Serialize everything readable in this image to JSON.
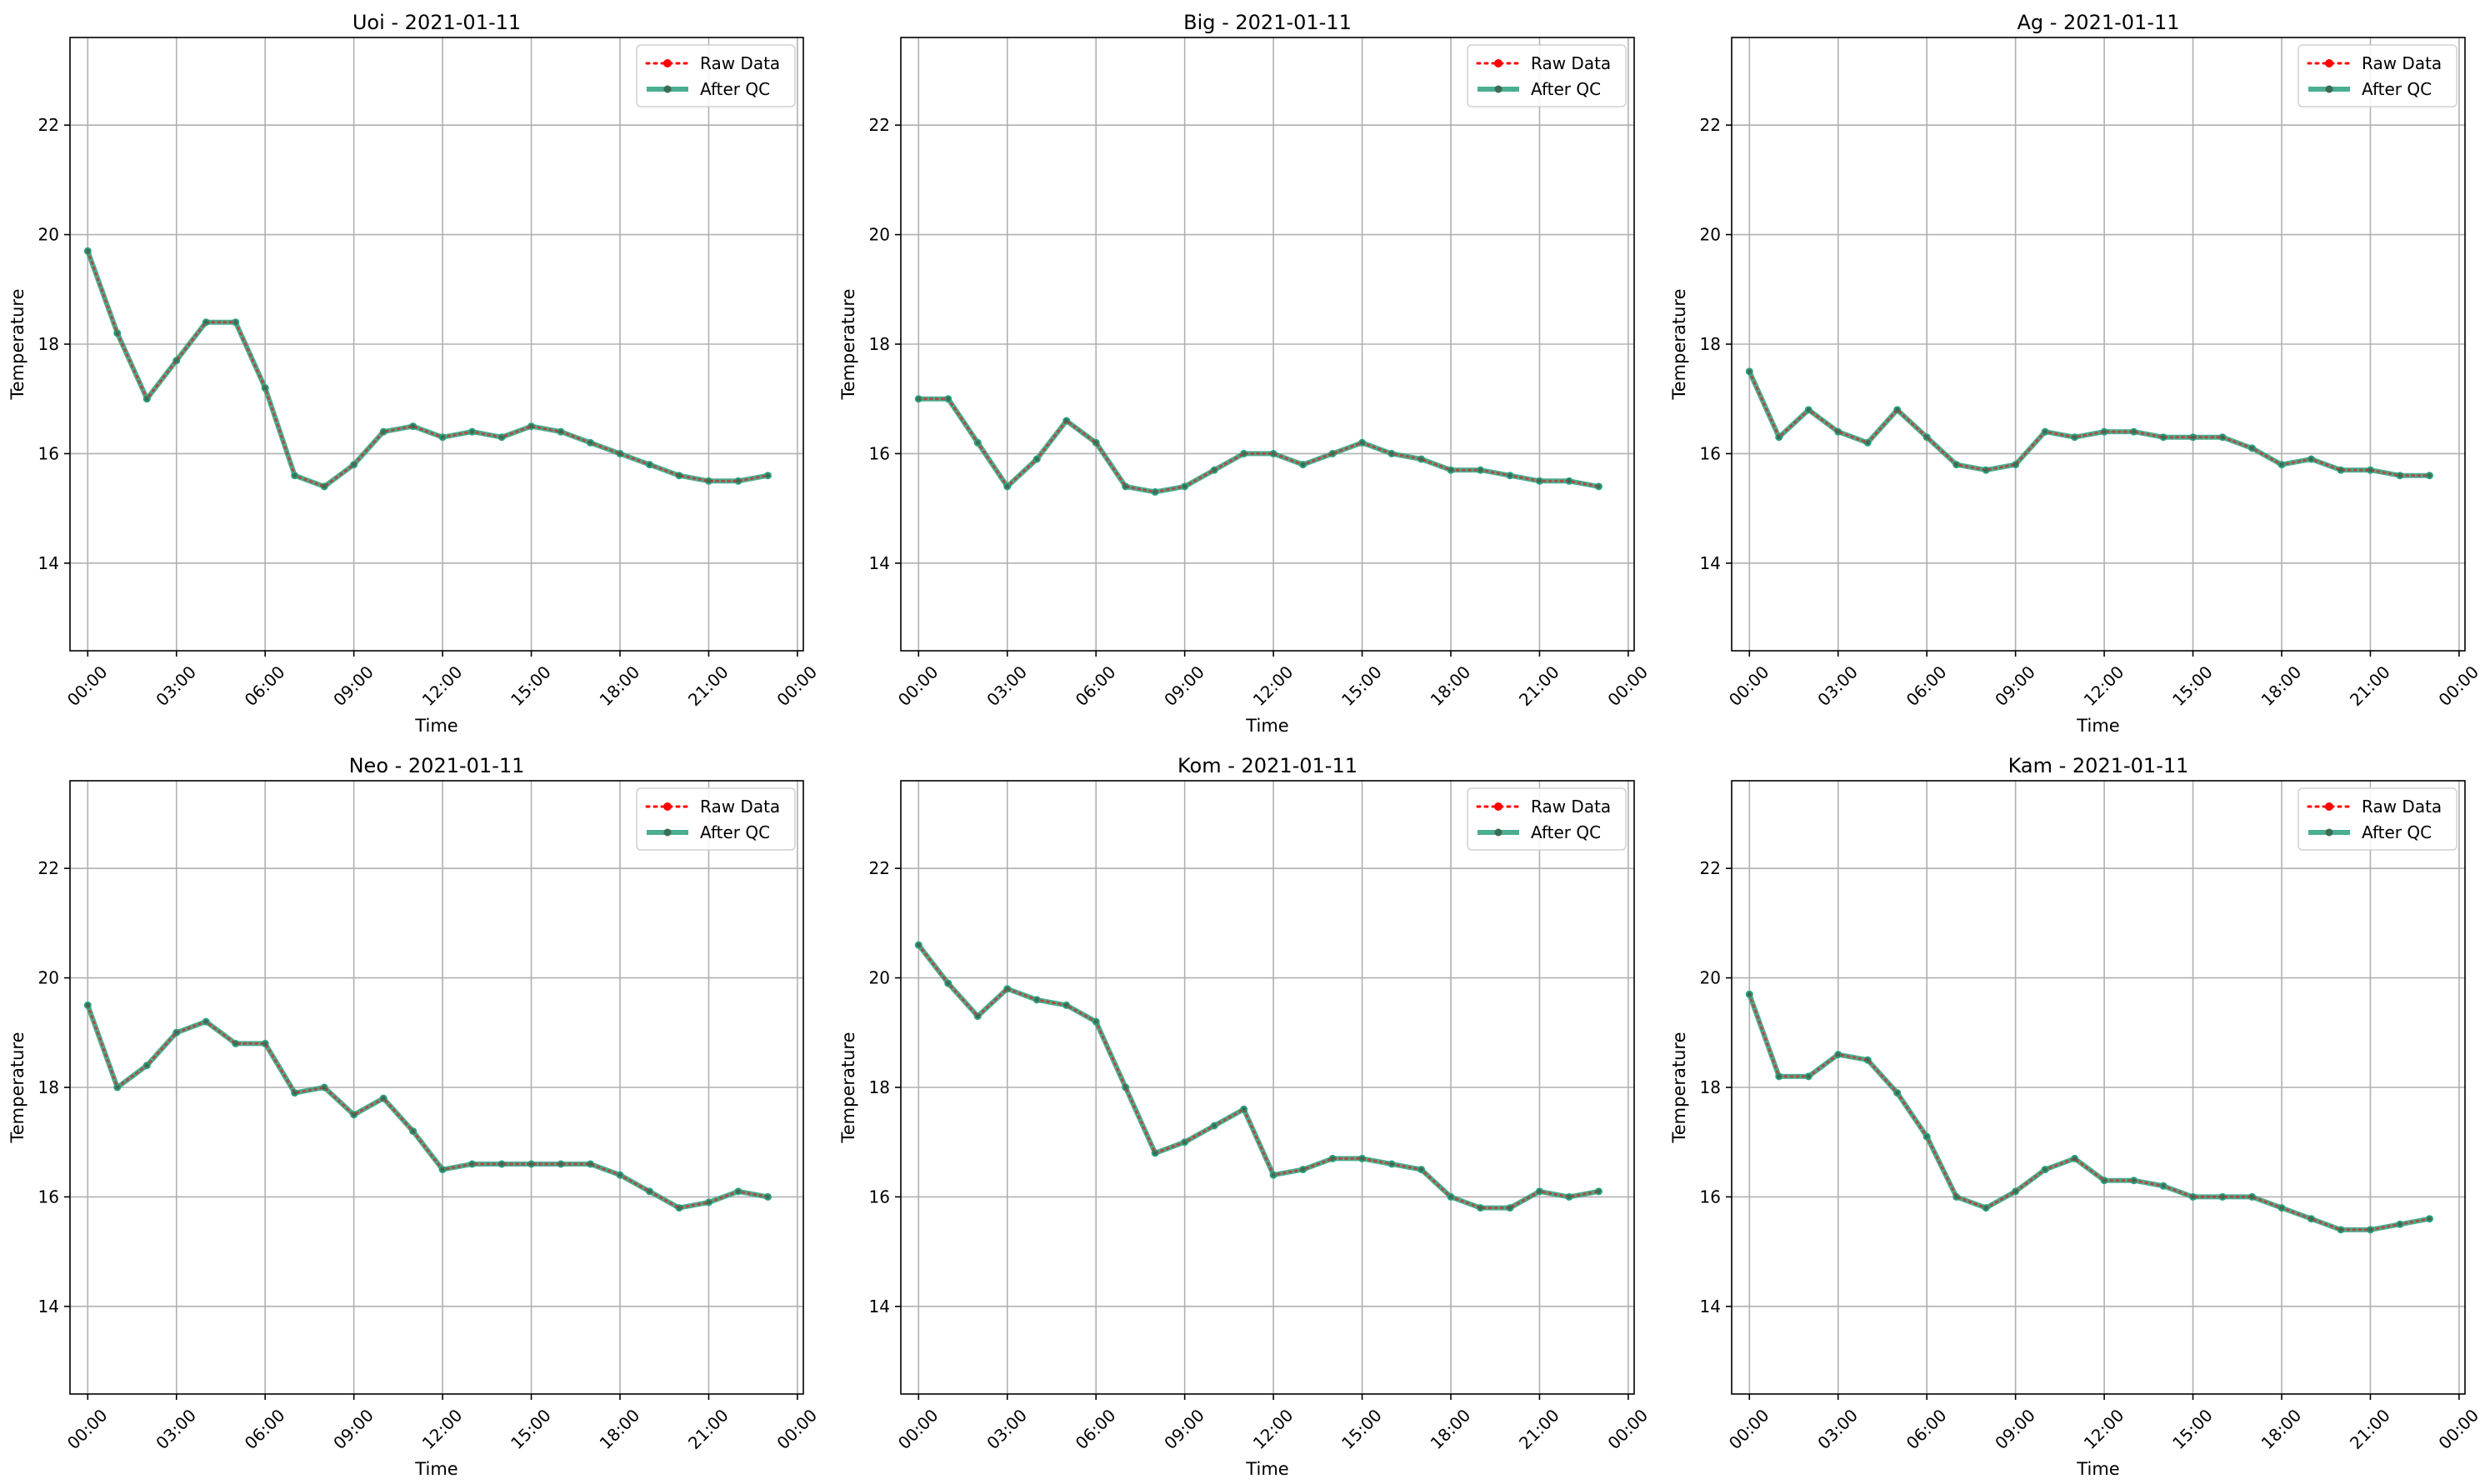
{
  "figure": {
    "background": "#ffffff",
    "colors": {
      "raw": "#ff0000",
      "qc": "#2ca07f",
      "grid": "#b0b0b0",
      "axis": "#000000"
    },
    "legend": {
      "position": "top-right",
      "raw_label": "Raw Data",
      "qc_label": "After QC"
    }
  },
  "chart_data": [
    {
      "type": "line",
      "title": "Uoi - 2021-01-11",
      "xlabel": "Time",
      "ylabel": "Temperature",
      "ylim": [
        12.4,
        23.6
      ],
      "yticks": [
        14,
        16,
        18,
        20,
        22
      ],
      "xlim_hours": [
        -0.6,
        24.2
      ],
      "xticks": [
        "00:00",
        "03:00",
        "06:00",
        "09:00",
        "12:00",
        "15:00",
        "18:00",
        "21:00",
        "00:00"
      ],
      "grid": true,
      "x": [
        "00:00",
        "01:00",
        "02:00",
        "03:00",
        "04:00",
        "05:00",
        "06:00",
        "07:00",
        "08:00",
        "09:00",
        "10:00",
        "11:00",
        "12:00",
        "13:00",
        "14:00",
        "15:00",
        "16:00",
        "17:00",
        "18:00",
        "19:00",
        "20:00",
        "21:00",
        "22:00",
        "23:00"
      ],
      "series": [
        {
          "name": "Raw Data",
          "values": [
            19.7,
            18.2,
            17.0,
            17.7,
            18.4,
            18.4,
            17.2,
            15.6,
            15.4,
            15.8,
            16.4,
            16.5,
            16.3,
            16.4,
            16.3,
            16.5,
            16.4,
            16.2,
            16.0,
            15.8,
            15.6,
            15.5,
            15.5,
            15.6
          ]
        },
        {
          "name": "After QC",
          "values": [
            19.7,
            18.2,
            17.0,
            17.7,
            18.4,
            18.4,
            17.2,
            15.6,
            15.4,
            15.8,
            16.4,
            16.5,
            16.3,
            16.4,
            16.3,
            16.5,
            16.4,
            16.2,
            16.0,
            15.8,
            15.6,
            15.5,
            15.5,
            15.6
          ]
        }
      ]
    },
    {
      "type": "line",
      "title": "Big - 2021-01-11",
      "xlabel": "Time",
      "ylabel": "Temperature",
      "ylim": [
        12.4,
        23.6
      ],
      "yticks": [
        14,
        16,
        18,
        20,
        22
      ],
      "xlim_hours": [
        -0.6,
        24.2
      ],
      "xticks": [
        "00:00",
        "03:00",
        "06:00",
        "09:00",
        "12:00",
        "15:00",
        "18:00",
        "21:00",
        "00:00"
      ],
      "grid": true,
      "x": [
        "00:00",
        "01:00",
        "02:00",
        "03:00",
        "04:00",
        "05:00",
        "06:00",
        "07:00",
        "08:00",
        "09:00",
        "10:00",
        "11:00",
        "12:00",
        "13:00",
        "14:00",
        "15:00",
        "16:00",
        "17:00",
        "18:00",
        "19:00",
        "20:00",
        "21:00",
        "22:00",
        "23:00"
      ],
      "series": [
        {
          "name": "Raw Data",
          "values": [
            17.0,
            17.0,
            16.2,
            15.4,
            15.9,
            16.6,
            16.2,
            15.4,
            15.3,
            15.4,
            15.7,
            16.0,
            16.0,
            15.8,
            16.0,
            16.2,
            16.0,
            15.9,
            15.7,
            15.7,
            15.6,
            15.5,
            15.5,
            15.4
          ]
        },
        {
          "name": "After QC",
          "values": [
            17.0,
            17.0,
            16.2,
            15.4,
            15.9,
            16.6,
            16.2,
            15.4,
            15.3,
            15.4,
            15.7,
            16.0,
            16.0,
            15.8,
            16.0,
            16.2,
            16.0,
            15.9,
            15.7,
            15.7,
            15.6,
            15.5,
            15.5,
            15.4
          ]
        }
      ]
    },
    {
      "type": "line",
      "title": "Ag - 2021-01-11",
      "xlabel": "Time",
      "ylabel": "Temperature",
      "ylim": [
        12.4,
        23.6
      ],
      "yticks": [
        14,
        16,
        18,
        20,
        22
      ],
      "xlim_hours": [
        -0.6,
        24.2
      ],
      "xticks": [
        "00:00",
        "03:00",
        "06:00",
        "09:00",
        "12:00",
        "15:00",
        "18:00",
        "21:00",
        "00:00"
      ],
      "grid": true,
      "x": [
        "00:00",
        "01:00",
        "02:00",
        "03:00",
        "04:00",
        "05:00",
        "06:00",
        "07:00",
        "08:00",
        "09:00",
        "10:00",
        "11:00",
        "12:00",
        "13:00",
        "14:00",
        "15:00",
        "16:00",
        "17:00",
        "18:00",
        "19:00",
        "20:00",
        "21:00",
        "22:00",
        "23:00"
      ],
      "series": [
        {
          "name": "Raw Data",
          "values": [
            17.5,
            16.3,
            16.8,
            16.4,
            16.2,
            16.8,
            16.3,
            15.8,
            15.7,
            15.8,
            16.4,
            16.3,
            16.4,
            16.4,
            16.3,
            16.3,
            16.3,
            16.1,
            15.8,
            15.9,
            15.7,
            15.7,
            15.6,
            15.6
          ]
        },
        {
          "name": "After QC",
          "values": [
            17.5,
            16.3,
            16.8,
            16.4,
            16.2,
            16.8,
            16.3,
            15.8,
            15.7,
            15.8,
            16.4,
            16.3,
            16.4,
            16.4,
            16.3,
            16.3,
            16.3,
            16.1,
            15.8,
            15.9,
            15.7,
            15.7,
            15.6,
            15.6
          ]
        }
      ]
    },
    {
      "type": "line",
      "title": "Neo - 2021-01-11",
      "xlabel": "Time",
      "ylabel": "Temperature",
      "ylim": [
        12.4,
        23.6
      ],
      "yticks": [
        14,
        16,
        18,
        20,
        22
      ],
      "xlim_hours": [
        -0.6,
        24.2
      ],
      "xticks": [
        "00:00",
        "03:00",
        "06:00",
        "09:00",
        "12:00",
        "15:00",
        "18:00",
        "21:00",
        "00:00"
      ],
      "grid": true,
      "x": [
        "00:00",
        "01:00",
        "02:00",
        "03:00",
        "04:00",
        "05:00",
        "06:00",
        "07:00",
        "08:00",
        "09:00",
        "10:00",
        "11:00",
        "12:00",
        "13:00",
        "14:00",
        "15:00",
        "16:00",
        "17:00",
        "18:00",
        "19:00",
        "20:00",
        "21:00",
        "22:00",
        "23:00"
      ],
      "series": [
        {
          "name": "Raw Data",
          "values": [
            19.5,
            18.0,
            18.4,
            19.0,
            19.2,
            18.8,
            18.8,
            17.9,
            18.0,
            17.5,
            17.8,
            17.2,
            16.5,
            16.6,
            16.6,
            16.6,
            16.6,
            16.6,
            16.4,
            16.1,
            15.8,
            15.9,
            16.1,
            16.0
          ]
        },
        {
          "name": "After QC",
          "values": [
            19.5,
            18.0,
            18.4,
            19.0,
            19.2,
            18.8,
            18.8,
            17.9,
            18.0,
            17.5,
            17.8,
            17.2,
            16.5,
            16.6,
            16.6,
            16.6,
            16.6,
            16.6,
            16.4,
            16.1,
            15.8,
            15.9,
            16.1,
            16.0
          ]
        }
      ]
    },
    {
      "type": "line",
      "title": "Kom - 2021-01-11",
      "xlabel": "Time",
      "ylabel": "Temperature",
      "ylim": [
        12.4,
        23.6
      ],
      "yticks": [
        14,
        16,
        18,
        20,
        22
      ],
      "xlim_hours": [
        -0.6,
        24.2
      ],
      "xticks": [
        "00:00",
        "03:00",
        "06:00",
        "09:00",
        "12:00",
        "15:00",
        "18:00",
        "21:00",
        "00:00"
      ],
      "grid": true,
      "x": [
        "00:00",
        "01:00",
        "02:00",
        "03:00",
        "04:00",
        "05:00",
        "06:00",
        "07:00",
        "08:00",
        "09:00",
        "10:00",
        "11:00",
        "12:00",
        "13:00",
        "14:00",
        "15:00",
        "16:00",
        "17:00",
        "18:00",
        "19:00",
        "20:00",
        "21:00",
        "22:00",
        "23:00"
      ],
      "series": [
        {
          "name": "Raw Data",
          "values": [
            20.6,
            19.9,
            19.3,
            19.8,
            19.6,
            19.5,
            19.2,
            18.0,
            16.8,
            17.0,
            17.3,
            17.6,
            16.4,
            16.5,
            16.7,
            16.7,
            16.6,
            16.5,
            16.0,
            15.8,
            15.8,
            16.1,
            16.0,
            16.1
          ]
        },
        {
          "name": "After QC",
          "values": [
            20.6,
            19.9,
            19.3,
            19.8,
            19.6,
            19.5,
            19.2,
            18.0,
            16.8,
            17.0,
            17.3,
            17.6,
            16.4,
            16.5,
            16.7,
            16.7,
            16.6,
            16.5,
            16.0,
            15.8,
            15.8,
            16.1,
            16.0,
            16.1
          ]
        }
      ]
    },
    {
      "type": "line",
      "title": "Kam - 2021-01-11",
      "xlabel": "Time",
      "ylabel": "Temperature",
      "ylim": [
        12.4,
        23.6
      ],
      "yticks": [
        14,
        16,
        18,
        20,
        22
      ],
      "xlim_hours": [
        -0.6,
        24.2
      ],
      "xticks": [
        "00:00",
        "03:00",
        "06:00",
        "09:00",
        "12:00",
        "15:00",
        "18:00",
        "21:00",
        "00:00"
      ],
      "grid": true,
      "x": [
        "00:00",
        "01:00",
        "02:00",
        "03:00",
        "04:00",
        "05:00",
        "06:00",
        "07:00",
        "08:00",
        "09:00",
        "10:00",
        "11:00",
        "12:00",
        "13:00",
        "14:00",
        "15:00",
        "16:00",
        "17:00",
        "18:00",
        "19:00",
        "20:00",
        "21:00",
        "22:00",
        "23:00"
      ],
      "series": [
        {
          "name": "Raw Data",
          "values": [
            19.7,
            18.2,
            18.2,
            18.6,
            18.5,
            17.9,
            17.1,
            16.0,
            15.8,
            16.1,
            16.5,
            16.7,
            16.3,
            16.3,
            16.2,
            16.0,
            16.0,
            16.0,
            15.8,
            15.6,
            15.4,
            15.4,
            15.5,
            15.6
          ]
        },
        {
          "name": "After QC",
          "values": [
            19.7,
            18.2,
            18.2,
            18.6,
            18.5,
            17.9,
            17.1,
            16.0,
            15.8,
            16.1,
            16.5,
            16.7,
            16.3,
            16.3,
            16.2,
            16.0,
            16.0,
            16.0,
            15.8,
            15.6,
            15.4,
            15.4,
            15.5,
            15.6
          ]
        }
      ]
    }
  ]
}
